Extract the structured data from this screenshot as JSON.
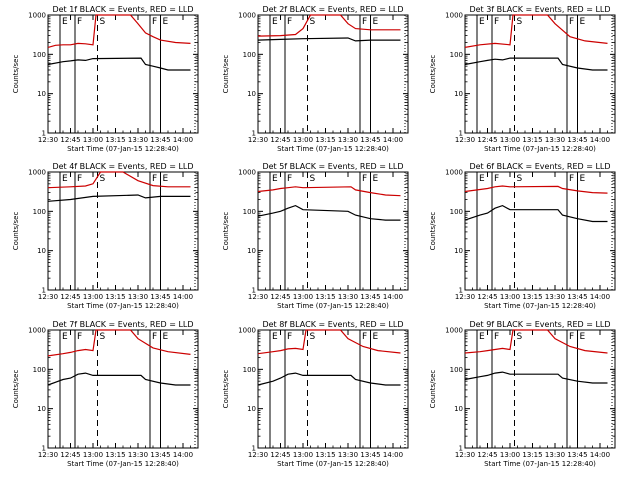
{
  "x_tick_labels": [
    "12:30",
    "12:45",
    "13:00",
    "13:15",
    "13:30",
    "13:45",
    "14:00"
  ],
  "y_tick_labels": [
    "1",
    "10",
    "100",
    "1000"
  ],
  "chart_data": [
    {
      "type": "line",
      "title": "Det 1f BLACK = Events, RED = LLD",
      "ylabel": "Counts/sec",
      "xlabel": "Start Time (07-Jan-15 12:28:40)",
      "ylim": [
        1,
        1000
      ],
      "yscale": "log",
      "xlim": [
        "12:30",
        "14:10"
      ],
      "series": [
        {
          "name": "Events",
          "color": "#000000",
          "points": [
            [
              "12:30",
              55
            ],
            [
              "12:40",
              65
            ],
            [
              "12:45",
              68
            ],
            [
              "12:50",
              72
            ],
            [
              "12:55",
              70
            ],
            [
              "13:00",
              78
            ],
            [
              "13:32",
              80
            ],
            [
              "13:35",
              55
            ],
            [
              "13:40",
              50
            ],
            [
              "13:45",
              45
            ],
            [
              "13:50",
              40
            ],
            [
              "13:55",
              40
            ],
            [
              "14:05",
              40
            ]
          ]
        },
        {
          "name": "LLD",
          "color": "#cc0000",
          "points": [
            [
              "12:30",
              150
            ],
            [
              "12:35",
              170
            ],
            [
              "12:40",
              175
            ],
            [
              "12:45",
              175
            ],
            [
              "12:50",
              190
            ],
            [
              "12:55",
              185
            ],
            [
              "13:00",
              175
            ],
            [
              "13:02",
              1000
            ],
            [
              "13:25",
              1000
            ],
            [
              "13:30",
              600
            ],
            [
              "13:35",
              350
            ],
            [
              "13:40",
              280
            ],
            [
              "13:45",
              230
            ],
            [
              "13:55",
              200
            ],
            [
              "14:05",
              190
            ]
          ]
        }
      ]
    },
    {
      "type": "line",
      "title": "Det 2f BLACK = Events, RED = LLD",
      "ylabel": "Counts/sec",
      "xlabel": "Start Time (07-Jan-15 12:28:40)",
      "ylim": [
        1,
        1000
      ],
      "yscale": "log",
      "xlim": [
        "12:30",
        "14:10"
      ],
      "series": [
        {
          "name": "Events",
          "color": "#000000",
          "points": [
            [
              "12:30",
              230
            ],
            [
              "12:45",
              240
            ],
            [
              "13:00",
              250
            ],
            [
              "13:30",
              260
            ],
            [
              "13:35",
              220
            ],
            [
              "13:45",
              230
            ],
            [
              "14:05",
              230
            ]
          ]
        },
        {
          "name": "LLD",
          "color": "#cc0000",
          "points": [
            [
              "12:30",
              290
            ],
            [
              "12:45",
              300
            ],
            [
              "12:55",
              320
            ],
            [
              "13:00",
              450
            ],
            [
              "13:05",
              1000
            ],
            [
              "13:25",
              1000
            ],
            [
              "13:30",
              600
            ],
            [
              "13:35",
              450
            ],
            [
              "13:45",
              420
            ],
            [
              "14:05",
              420
            ]
          ]
        }
      ]
    },
    {
      "type": "line",
      "title": "Det 3f BLACK = Events, RED = LLD",
      "ylabel": "Counts/sec",
      "xlabel": "Start Time (07-Jan-15 12:28:40)",
      "ylim": [
        1,
        1000
      ],
      "yscale": "log",
      "xlim": [
        "12:30",
        "14:10"
      ],
      "series": [
        {
          "name": "Events",
          "color": "#000000",
          "points": [
            [
              "12:30",
              55
            ],
            [
              "12:40",
              65
            ],
            [
              "12:45",
              70
            ],
            [
              "12:50",
              75
            ],
            [
              "12:55",
              72
            ],
            [
              "13:00",
              80
            ],
            [
              "13:32",
              80
            ],
            [
              "13:35",
              55
            ],
            [
              "13:45",
              45
            ],
            [
              "13:55",
              40
            ],
            [
              "14:05",
              40
            ]
          ]
        },
        {
          "name": "LLD",
          "color": "#cc0000",
          "points": [
            [
              "12:30",
              150
            ],
            [
              "12:40",
              175
            ],
            [
              "12:50",
              190
            ],
            [
              "13:00",
              175
            ],
            [
              "13:02",
              1000
            ],
            [
              "13:25",
              1000
            ],
            [
              "13:30",
              600
            ],
            [
              "13:40",
              280
            ],
            [
              "13:50",
              220
            ],
            [
              "14:05",
              190
            ]
          ]
        }
      ]
    },
    {
      "type": "line",
      "title": "Det 4f BLACK = Events, RED = LLD",
      "ylabel": "Counts/sec",
      "xlabel": "Start Time (07-Jan-15 12:28:40)",
      "ylim": [
        1,
        1000
      ],
      "yscale": "log",
      "xlim": [
        "12:30",
        "14:10"
      ],
      "series": [
        {
          "name": "Events",
          "color": "#000000",
          "points": [
            [
              "12:30",
              180
            ],
            [
              "12:45",
              200
            ],
            [
              "13:00",
              240
            ],
            [
              "13:30",
              260
            ],
            [
              "13:35",
              220
            ],
            [
              "13:45",
              240
            ],
            [
              "14:05",
              240
            ]
          ]
        },
        {
          "name": "LLD",
          "color": "#cc0000",
          "points": [
            [
              "12:30",
              400
            ],
            [
              "12:45",
              420
            ],
            [
              "12:55",
              440
            ],
            [
              "13:00",
              500
            ],
            [
              "13:05",
              1000
            ],
            [
              "13:20",
              1000
            ],
            [
              "13:30",
              600
            ],
            [
              "13:40",
              450
            ],
            [
              "13:50",
              420
            ],
            [
              "14:05",
              420
            ]
          ]
        }
      ]
    },
    {
      "type": "line",
      "title": "Det 5f BLACK = Events, RED = LLD",
      "ylabel": "Counts/sec",
      "xlabel": "Start Time (07-Jan-15 12:28:40)",
      "ylim": [
        1,
        1000
      ],
      "yscale": "log",
      "xlim": [
        "12:30",
        "14:10"
      ],
      "series": [
        {
          "name": "Events",
          "color": "#000000",
          "points": [
            [
              "12:30",
              75
            ],
            [
              "12:40",
              90
            ],
            [
              "12:45",
              100
            ],
            [
              "12:50",
              120
            ],
            [
              "12:55",
              140
            ],
            [
              "13:00",
              110
            ],
            [
              "13:30",
              100
            ],
            [
              "13:35",
              80
            ],
            [
              "13:45",
              65
            ],
            [
              "13:55",
              60
            ],
            [
              "14:05",
              60
            ]
          ]
        },
        {
          "name": "LLD",
          "color": "#cc0000",
          "points": [
            [
              "12:30",
              320
            ],
            [
              "12:40",
              350
            ],
            [
              "12:45",
              380
            ],
            [
              "12:50",
              400
            ],
            [
              "12:55",
              420
            ],
            [
              "13:00",
              400
            ],
            [
              "13:32",
              420
            ],
            [
              "13:35",
              350
            ],
            [
              "13:45",
              300
            ],
            [
              "13:55",
              260
            ],
            [
              "14:05",
              250
            ]
          ]
        }
      ]
    },
    {
      "type": "line",
      "title": "Det 6f BLACK = Events, RED = LLD",
      "ylabel": "Counts/sec",
      "xlabel": "Start Time (07-Jan-15 12:28:40)",
      "ylim": [
        1,
        1000
      ],
      "yscale": "log",
      "xlim": [
        "12:30",
        "14:10"
      ],
      "series": [
        {
          "name": "Events",
          "color": "#000000",
          "points": [
            [
              "12:30",
              60
            ],
            [
              "12:40",
              80
            ],
            [
              "12:45",
              90
            ],
            [
              "12:50",
              120
            ],
            [
              "12:55",
              140
            ],
            [
              "13:00",
              110
            ],
            [
              "13:32",
              110
            ],
            [
              "13:35",
              80
            ],
            [
              "13:45",
              65
            ],
            [
              "13:55",
              55
            ],
            [
              "14:05",
              55
            ]
          ]
        },
        {
          "name": "LLD",
          "color": "#cc0000",
          "points": [
            [
              "12:30",
              320
            ],
            [
              "12:40",
              360
            ],
            [
              "12:45",
              380
            ],
            [
              "12:50",
              420
            ],
            [
              "12:55",
              440
            ],
            [
              "13:00",
              420
            ],
            [
              "13:32",
              430
            ],
            [
              "13:35",
              380
            ],
            [
              "13:45",
              330
            ],
            [
              "13:55",
              300
            ],
            [
              "14:05",
              290
            ]
          ]
        }
      ]
    },
    {
      "type": "line",
      "title": "Det 7f BLACK = Events, RED = LLD",
      "ylabel": "Counts/sec",
      "xlabel": "Start Time (07-Jan-15 12:28:40)",
      "ylim": [
        1,
        1000
      ],
      "yscale": "log",
      "xlim": [
        "12:30",
        "14:10"
      ],
      "series": [
        {
          "name": "Events",
          "color": "#000000",
          "points": [
            [
              "12:30",
              40
            ],
            [
              "12:40",
              55
            ],
            [
              "12:45",
              60
            ],
            [
              "12:50",
              75
            ],
            [
              "12:55",
              80
            ],
            [
              "13:00",
              70
            ],
            [
              "13:32",
              70
            ],
            [
              "13:35",
              55
            ],
            [
              "13:45",
              45
            ],
            [
              "13:55",
              40
            ],
            [
              "14:05",
              40
            ]
          ]
        },
        {
          "name": "LLD",
          "color": "#cc0000",
          "points": [
            [
              "12:30",
              220
            ],
            [
              "12:40",
              250
            ],
            [
              "12:45",
              270
            ],
            [
              "12:50",
              300
            ],
            [
              "12:55",
              320
            ],
            [
              "13:00",
              300
            ],
            [
              "13:02",
              1000
            ],
            [
              "13:25",
              1000
            ],
            [
              "13:30",
              600
            ],
            [
              "13:40",
              350
            ],
            [
              "13:50",
              280
            ],
            [
              "14:05",
              240
            ]
          ]
        }
      ]
    },
    {
      "type": "line",
      "title": "Det 8f BLACK = Events, RED = LLD",
      "ylabel": "Counts/sec",
      "xlabel": "Start Time (07-Jan-15 12:28:40)",
      "ylim": [
        1,
        1000
      ],
      "yscale": "log",
      "xlim": [
        "12:30",
        "14:10"
      ],
      "series": [
        {
          "name": "Events",
          "color": "#000000",
          "points": [
            [
              "12:30",
              40
            ],
            [
              "12:40",
              50
            ],
            [
              "12:45",
              60
            ],
            [
              "12:50",
              75
            ],
            [
              "12:55",
              80
            ],
            [
              "13:00",
              70
            ],
            [
              "13:32",
              70
            ],
            [
              "13:35",
              55
            ],
            [
              "13:45",
              45
            ],
            [
              "13:55",
              40
            ],
            [
              "14:05",
              40
            ]
          ]
        },
        {
          "name": "LLD",
          "color": "#cc0000",
          "points": [
            [
              "12:30",
              250
            ],
            [
              "12:40",
              280
            ],
            [
              "12:45",
              300
            ],
            [
              "12:50",
              330
            ],
            [
              "12:55",
              340
            ],
            [
              "13:00",
              320
            ],
            [
              "13:02",
              1000
            ],
            [
              "13:25",
              1000
            ],
            [
              "13:30",
              600
            ],
            [
              "13:40",
              380
            ],
            [
              "13:50",
              300
            ],
            [
              "14:05",
              260
            ]
          ]
        }
      ]
    },
    {
      "type": "line",
      "title": "Det 9f BLACK = Events, RED = LLD",
      "ylabel": "Counts/sec",
      "xlabel": "Start Time (07-Jan-15 12:28:40)",
      "ylim": [
        1,
        1000
      ],
      "yscale": "log",
      "xlim": [
        "12:30",
        "14:10"
      ],
      "series": [
        {
          "name": "Events",
          "color": "#000000",
          "points": [
            [
              "12:30",
              55
            ],
            [
              "12:40",
              65
            ],
            [
              "12:45",
              70
            ],
            [
              "12:50",
              80
            ],
            [
              "12:55",
              85
            ],
            [
              "13:00",
              75
            ],
            [
              "13:32",
              75
            ],
            [
              "13:35",
              60
            ],
            [
              "13:45",
              50
            ],
            [
              "13:55",
              45
            ],
            [
              "14:05",
              45
            ]
          ]
        },
        {
          "name": "LLD",
          "color": "#cc0000",
          "points": [
            [
              "12:30",
              260
            ],
            [
              "12:40",
              280
            ],
            [
              "12:45",
              300
            ],
            [
              "12:50",
              320
            ],
            [
              "12:55",
              340
            ],
            [
              "13:00",
              320
            ],
            [
              "13:02",
              1000
            ],
            [
              "13:25",
              1000
            ],
            [
              "13:30",
              600
            ],
            [
              "13:40",
              380
            ],
            [
              "13:50",
              300
            ],
            [
              "14:05",
              260
            ]
          ]
        }
      ]
    }
  ],
  "markers": [
    {
      "label": "E",
      "time": "12:38"
    },
    {
      "label": "F",
      "time": "12:48"
    },
    {
      "label": "S",
      "time": "13:03"
    },
    {
      "label": "F",
      "time": "13:38"
    },
    {
      "label": "E",
      "time": "13:45"
    }
  ]
}
